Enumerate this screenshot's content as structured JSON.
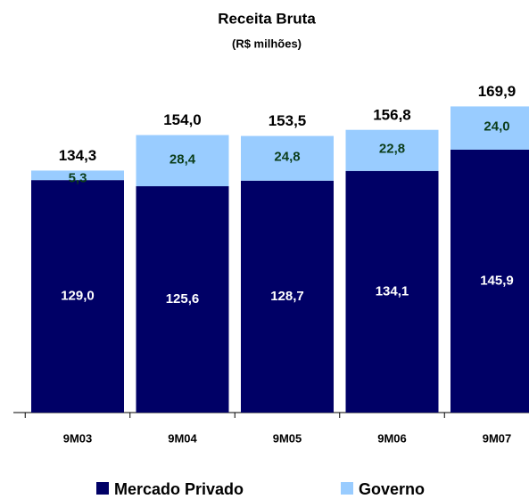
{
  "chart_data": {
    "type": "stacked_bar",
    "title": "Receita Bruta",
    "subtitle": "(R$ milhões)",
    "categories": [
      "9M03",
      "9M04",
      "9M05",
      "9M06",
      "9M07"
    ],
    "series": [
      {
        "name": "Mercado Privado",
        "color": "#000066",
        "values": [
          129.0,
          125.6,
          128.7,
          134.1,
          145.9
        ],
        "value_labels": [
          "129,0",
          "125,6",
          "128,7",
          "134,1",
          "145,9"
        ]
      },
      {
        "name": "Governo",
        "color": "#99ccff",
        "values": [
          5.3,
          28.4,
          24.8,
          22.8,
          24.0
        ],
        "value_labels": [
          "5,3",
          "28,4",
          "24,8",
          "22,8",
          "24,0"
        ]
      }
    ],
    "totals": [
      134.3,
      154.0,
      153.5,
      156.8,
      169.9
    ],
    "total_labels": [
      "134,3",
      "154,0",
      "153,5",
      "156,8",
      "169,9"
    ],
    "ylim": [
      0,
      180
    ]
  }
}
